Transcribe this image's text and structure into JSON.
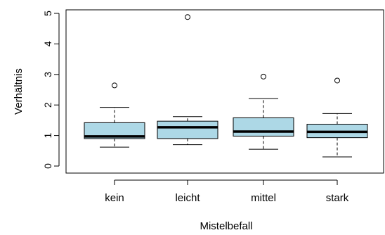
{
  "chart_data": {
    "type": "boxplot",
    "title": "",
    "xlabel": "Mistelbefall",
    "ylabel": "Verhältnis",
    "ylim": [
      0,
      5
    ],
    "y_ticks": [
      "0",
      "1",
      "2",
      "3",
      "4",
      "5"
    ],
    "categories": [
      "kein",
      "leicht",
      "mittel",
      "stark"
    ],
    "boxes": [
      {
        "category": "kein",
        "whisker_low": 0.62,
        "q1": 0.9,
        "median": 0.97,
        "q3": 1.42,
        "whisker_high": 1.92,
        "outliers": [
          2.64
        ]
      },
      {
        "category": "leicht",
        "whisker_low": 0.7,
        "q1": 0.9,
        "median": 1.27,
        "q3": 1.47,
        "whisker_high": 1.62,
        "outliers": [
          4.88
        ]
      },
      {
        "category": "mittel",
        "whisker_low": 0.55,
        "q1": 0.98,
        "median": 1.13,
        "q3": 1.58,
        "whisker_high": 2.21,
        "outliers": [
          2.93
        ]
      },
      {
        "category": "stark",
        "whisker_low": 0.3,
        "q1": 0.93,
        "median": 1.12,
        "q3": 1.37,
        "whisker_high": 1.72,
        "outliers": [
          2.8
        ]
      }
    ],
    "box_fill": "#add8e6",
    "grid": false,
    "legend": "none"
  }
}
